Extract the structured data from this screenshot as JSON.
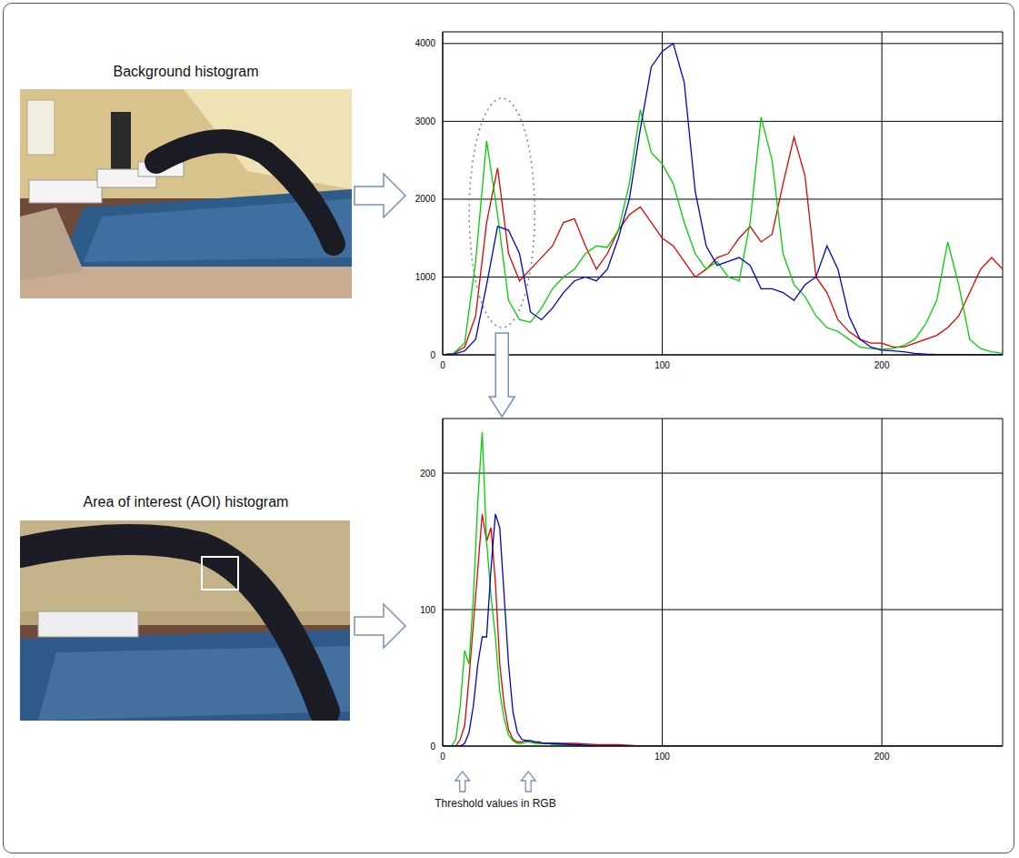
{
  "chart_data": [
    {
      "type": "line",
      "title": "Background histogram",
      "x": [
        0,
        5,
        10,
        15,
        20,
        25,
        30,
        35,
        40,
        45,
        50,
        55,
        60,
        65,
        70,
        75,
        80,
        85,
        90,
        95,
        100,
        105,
        110,
        115,
        120,
        125,
        130,
        135,
        140,
        145,
        150,
        155,
        160,
        165,
        170,
        175,
        180,
        185,
        190,
        195,
        200,
        205,
        210,
        215,
        220,
        225,
        230,
        235,
        240,
        245,
        250,
        255
      ],
      "xlim": [
        0,
        255
      ],
      "xticks": [
        0,
        100,
        200
      ],
      "ylim": [
        0,
        4150
      ],
      "yticks": [
        0,
        1000,
        2000,
        3000,
        4000
      ],
      "grid": true,
      "series": [
        {
          "color": "#e00000",
          "values": [
            0,
            20,
            100,
            500,
            1700,
            2400,
            1300,
            950,
            1100,
            1250,
            1400,
            1700,
            1750,
            1400,
            1100,
            1300,
            1600,
            1800,
            1900,
            1700,
            1500,
            1400,
            1200,
            1000,
            1100,
            1250,
            1300,
            1500,
            1650,
            1450,
            1550,
            2200,
            2800,
            2300,
            1000,
            800,
            450,
            300,
            200,
            150,
            150,
            100,
            100,
            150,
            200,
            250,
            350,
            500,
            800,
            1100,
            1250,
            1100
          ]
        },
        {
          "color": "#00d000",
          "values": [
            0,
            20,
            150,
            1200,
            2750,
            1800,
            700,
            450,
            420,
            600,
            850,
            1000,
            1100,
            1300,
            1400,
            1380,
            1600,
            2200,
            3150,
            2600,
            2450,
            2200,
            1700,
            1300,
            1100,
            1200,
            1000,
            950,
            1700,
            3050,
            2500,
            1300,
            900,
            750,
            500,
            350,
            300,
            200,
            100,
            80,
            70,
            80,
            120,
            200,
            400,
            700,
            1450,
            900,
            200,
            80,
            40,
            20
          ]
        },
        {
          "color": "#0000d0",
          "values": [
            0,
            10,
            50,
            200,
            900,
            1650,
            1600,
            1300,
            550,
            450,
            600,
            800,
            950,
            1000,
            950,
            1100,
            1500,
            2000,
            2900,
            3700,
            3900,
            4000,
            3500,
            2100,
            1400,
            1150,
            1200,
            1250,
            1150,
            850,
            850,
            800,
            700,
            900,
            1000,
            1400,
            1100,
            500,
            200,
            100,
            60,
            50,
            40,
            20,
            10,
            5,
            0,
            0,
            0,
            0,
            0,
            0
          ]
        }
      ]
    },
    {
      "type": "line",
      "title": "Area of interest (AOI) histogram",
      "x": [
        0,
        2,
        4,
        6,
        8,
        10,
        12,
        14,
        16,
        18,
        20,
        22,
        24,
        26,
        28,
        30,
        32,
        34,
        36,
        38,
        40,
        42,
        44,
        46,
        48,
        50,
        60,
        70,
        80,
        90,
        100,
        120,
        140,
        160,
        180,
        200,
        220,
        240,
        255
      ],
      "xlim": [
        0,
        255
      ],
      "xticks": [
        0,
        100,
        200
      ],
      "ylim": [
        0,
        240
      ],
      "yticks": [
        0,
        100,
        200
      ],
      "grid": true,
      "series": [
        {
          "color": "#e00000",
          "values": [
            0,
            0,
            0,
            0,
            5,
            15,
            50,
            90,
            130,
            170,
            150,
            160,
            120,
            60,
            30,
            12,
            5,
            3,
            3,
            4,
            3,
            3,
            2,
            2,
            2,
            2,
            2,
            1,
            1,
            0,
            0,
            0,
            0,
            0,
            0,
            0,
            0,
            0,
            0
          ]
        },
        {
          "color": "#00d000",
          "values": [
            0,
            0,
            0,
            5,
            30,
            70,
            60,
            110,
            180,
            230,
            150,
            110,
            80,
            40,
            20,
            8,
            4,
            2,
            2,
            3,
            3,
            2,
            2,
            2,
            2,
            1,
            1,
            0,
            0,
            0,
            0,
            0,
            0,
            0,
            0,
            0,
            0,
            0,
            0
          ]
        },
        {
          "color": "#0000d0",
          "values": [
            0,
            0,
            0,
            0,
            0,
            2,
            10,
            30,
            60,
            80,
            80,
            130,
            170,
            160,
            110,
            60,
            25,
            10,
            5,
            4,
            4,
            3,
            3,
            2,
            2,
            2,
            1,
            0,
            0,
            0,
            0,
            0,
            0,
            0,
            0,
            0,
            0,
            0,
            0
          ]
        }
      ],
      "thresholds": {
        "label": "Threshold values in RGB",
        "values": [
          9,
          39
        ]
      }
    }
  ]
}
